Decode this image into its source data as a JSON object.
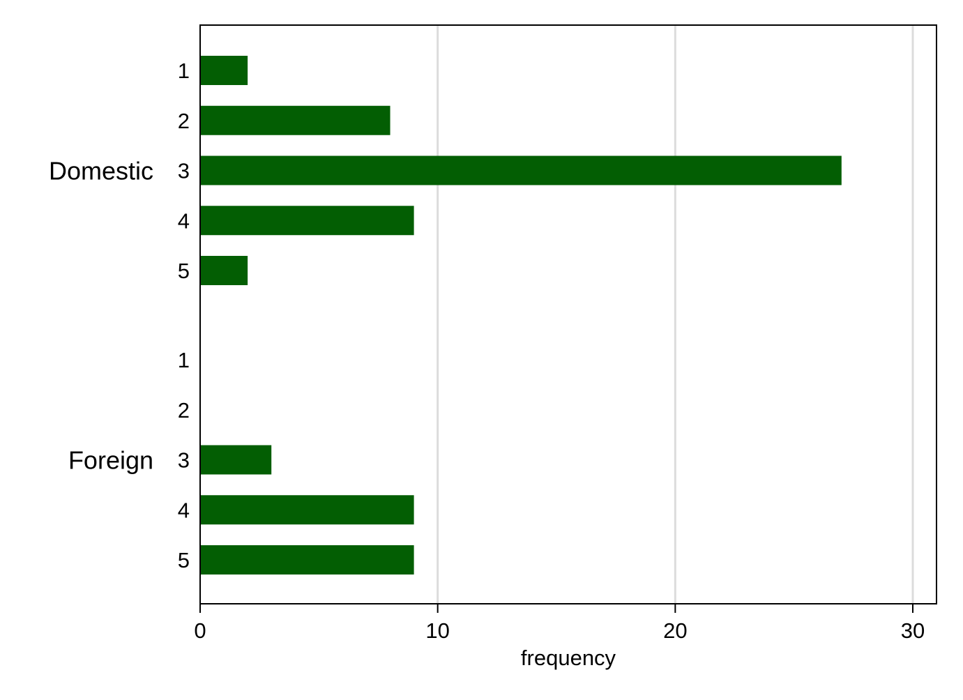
{
  "chart_data": {
    "type": "bar",
    "orientation": "horizontal",
    "groups": [
      {
        "name": "Domestic",
        "categories": [
          "1",
          "2",
          "3",
          "4",
          "5"
        ],
        "values": [
          2,
          8,
          27,
          9,
          2
        ]
      },
      {
        "name": "Foreign",
        "categories": [
          "1",
          "2",
          "3",
          "4",
          "5"
        ],
        "values": [
          0,
          0,
          3,
          9,
          9
        ]
      }
    ],
    "xlabel": "frequency",
    "ylabel": "",
    "title": "",
    "xlim": [
      0,
      30
    ],
    "xticks": [
      0,
      10,
      20,
      30
    ],
    "grid": "vertical",
    "legend": "none",
    "bar_color": "#035e03",
    "grid_color": "#dcdcdc"
  }
}
